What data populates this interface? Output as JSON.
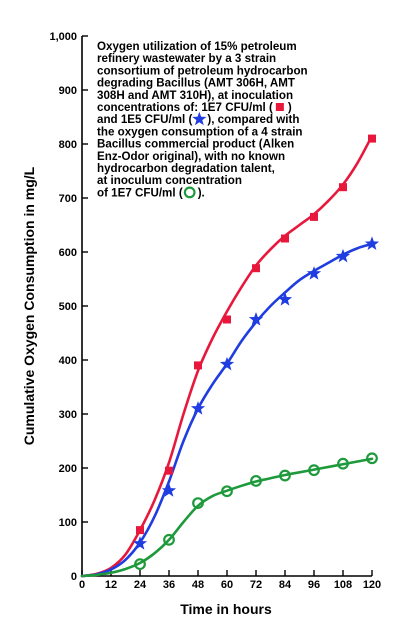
{
  "chart_data": {
    "type": "line",
    "xlabel": "Time in hours",
    "ylabel": "Cumulative Oxygen Consumption in mg/L",
    "xlim": [
      0,
      120
    ],
    "ylim": [
      0,
      1000
    ],
    "x_ticks": [
      0,
      12,
      24,
      36,
      48,
      60,
      72,
      84,
      96,
      108,
      120
    ],
    "y_ticks": [
      0,
      100,
      200,
      300,
      400,
      500,
      600,
      700,
      800,
      900,
      1000
    ],
    "x_tick_labels": [
      "0",
      "12",
      "24",
      "36",
      "48",
      "60",
      "72",
      "84",
      "96",
      "108",
      "120"
    ],
    "y_tick_labels": [
      "0",
      "100",
      "200",
      "300",
      "400",
      "500",
      "600",
      "700",
      "800",
      "900",
      "1,000"
    ],
    "grid": false,
    "series": [
      {
        "marker": "square",
        "color": "#e8183c",
        "x": [
          24,
          36,
          48,
          60,
          72,
          84,
          96,
          108,
          120
        ],
        "y": [
          85,
          195,
          390,
          475,
          570,
          625,
          665,
          720,
          810
        ],
        "curve_x": [
          0,
          6,
          12,
          18,
          24,
          30,
          36,
          42,
          48,
          54,
          60,
          66,
          72,
          78,
          84,
          90,
          96,
          102,
          108,
          114,
          120
        ],
        "curve_y": [
          0,
          4,
          15,
          40,
          85,
          140,
          210,
          300,
          380,
          440,
          490,
          535,
          575,
          605,
          630,
          650,
          670,
          695,
          725,
          765,
          815
        ]
      },
      {
        "marker": "star",
        "color": "#1f3de0",
        "x": [
          24,
          36,
          48,
          60,
          72,
          84,
          96,
          108,
          120
        ],
        "y": [
          60,
          158,
          310,
          392,
          475,
          512,
          560,
          592,
          615
        ],
        "curve_x": [
          0,
          6,
          12,
          18,
          24,
          30,
          36,
          42,
          48,
          54,
          60,
          66,
          72,
          78,
          84,
          90,
          96,
          102,
          108,
          114,
          120
        ],
        "curve_y": [
          0,
          3,
          12,
          30,
          62,
          110,
          175,
          250,
          310,
          355,
          393,
          435,
          470,
          500,
          525,
          548,
          565,
          580,
          595,
          607,
          615
        ]
      },
      {
        "marker": "circle",
        "color": "#1e9a3c",
        "x": [
          24,
          36,
          48,
          60,
          72,
          84,
          96,
          108,
          120
        ],
        "y": [
          22,
          67,
          135,
          157,
          176,
          186,
          196,
          208,
          218
        ],
        "curve_x": [
          0,
          6,
          12,
          18,
          24,
          30,
          36,
          42,
          48,
          54,
          60,
          66,
          72,
          78,
          84,
          90,
          96,
          102,
          108,
          114,
          120
        ],
        "curve_y": [
          0,
          2,
          6,
          13,
          24,
          42,
          67,
          100,
          130,
          148,
          158,
          167,
          175,
          181,
          187,
          192,
          197,
          202,
          207,
          212,
          217
        ]
      }
    ],
    "annotation": {
      "lines": [
        "Oxygen utilization of 15% petroleum",
        "refinery wastewater by a 3 strain",
        "consortium of petroleum hydrocarbon",
        "degrading Bacillus (AMT 306H, AMT",
        "308H and AMT 310H), at inoculation",
        "concentrations of: 1E7 CFU/ml (",
        "and 1E5 CFU/ml (",
        "the oxygen consumption of a 4 strain",
        "Bacillus commercial product (Alken",
        "Enz-Odor original), with no known",
        "hydrocarbon degradation talent,",
        "at inoculum concentration",
        "of 1E7 CFU/ml ("
      ],
      "line_suffixes": [
        "",
        "",
        "",
        "",
        "",
        ")",
        "), compared with",
        "",
        "",
        "",
        "",
        "",
        ")."
      ]
    }
  }
}
